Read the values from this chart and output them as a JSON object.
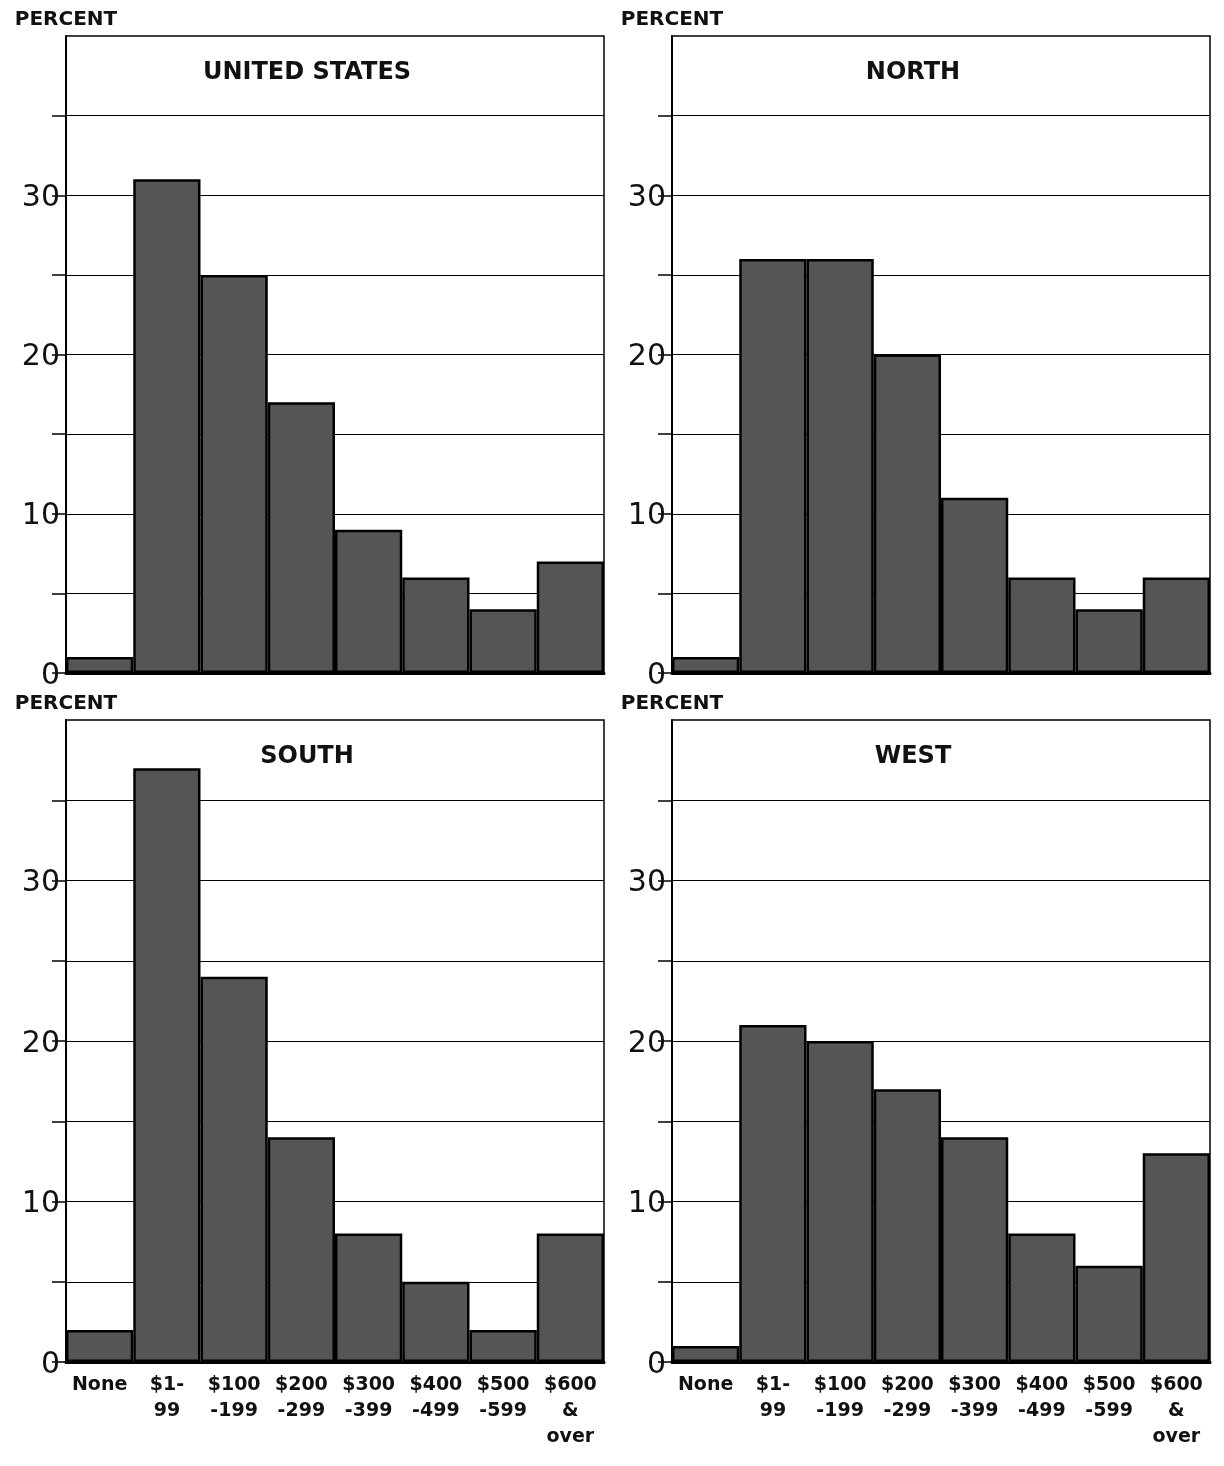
{
  "chart_data": [
    {
      "type": "bar",
      "title": "UNITED STATES",
      "ylabel": "PERCENT",
      "categories": [
        null,
        null,
        null,
        null,
        null,
        null,
        null,
        null
      ],
      "values": [
        1,
        31,
        25,
        17,
        9,
        6,
        4,
        7
      ],
      "color": "#555555",
      "ylim": [
        0,
        40
      ],
      "yticks": [
        0,
        {
          "value": 5,
          "label": null
        },
        10,
        {
          "value": 15,
          "label": null
        },
        20,
        {
          "value": 25,
          "label": null
        },
        30,
        {
          "value": 35,
          "label": null
        }
      ],
      "grid": "y",
      "tick_labels": "y"
    },
    {
      "type": "bar",
      "title": "NORTH",
      "ylabel": "PERCENT",
      "categories": [
        null,
        null,
        null,
        null,
        null,
        null,
        null,
        null
      ],
      "values": [
        1,
        26,
        26,
        20,
        11,
        6,
        4,
        6
      ],
      "color": "#555555",
      "ylim": [
        0,
        40
      ],
      "yticks": [
        0,
        {
          "value": 5,
          "label": null
        },
        10,
        {
          "value": 15,
          "label": null
        },
        20,
        {
          "value": 25,
          "label": null
        },
        30,
        {
          "value": 35,
          "label": null
        }
      ],
      "grid": "y",
      "tick_labels": "y"
    },
    {
      "type": "bar",
      "title": "SOUTH",
      "ylabel": "PERCENT",
      "categories": [
        "None",
        "$1-\n99",
        "$100\n-199",
        "$200\n-299",
        "$300\n-399",
        "$400\n-499",
        "$500\n-599",
        "$600\n&\nover"
      ],
      "values": [
        2,
        37,
        24,
        14,
        8,
        5,
        2,
        8
      ],
      "color": "#555555",
      "ylim": [
        0,
        40
      ],
      "yticks": [
        0,
        {
          "value": 5,
          "label": null
        },
        10,
        {
          "value": 15,
          "label": null
        },
        20,
        {
          "value": 25,
          "label": null
        },
        30,
        {
          "value": 35,
          "label": null
        }
      ],
      "grid": "y"
    },
    {
      "type": "bar",
      "title": "WEST",
      "ylabel": "PERCENT",
      "categories": [
        "None",
        "$1-\n99",
        "$100\n-199",
        "$200\n-299",
        "$300\n-399",
        "$400\n-499",
        "$500\n-599",
        "$600\n&\nover"
      ],
      "values": [
        1,
        21,
        20,
        17,
        14,
        8,
        6,
        13
      ],
      "color": "#555555",
      "ylim": [
        0,
        40
      ],
      "yticks": [
        0,
        {
          "value": 5,
          "label": null
        },
        10,
        {
          "value": 15,
          "label": null
        },
        20,
        {
          "value": 25,
          "label": null
        },
        30,
        {
          "value": 35,
          "label": null
        }
      ],
      "grid": "y"
    }
  ]
}
